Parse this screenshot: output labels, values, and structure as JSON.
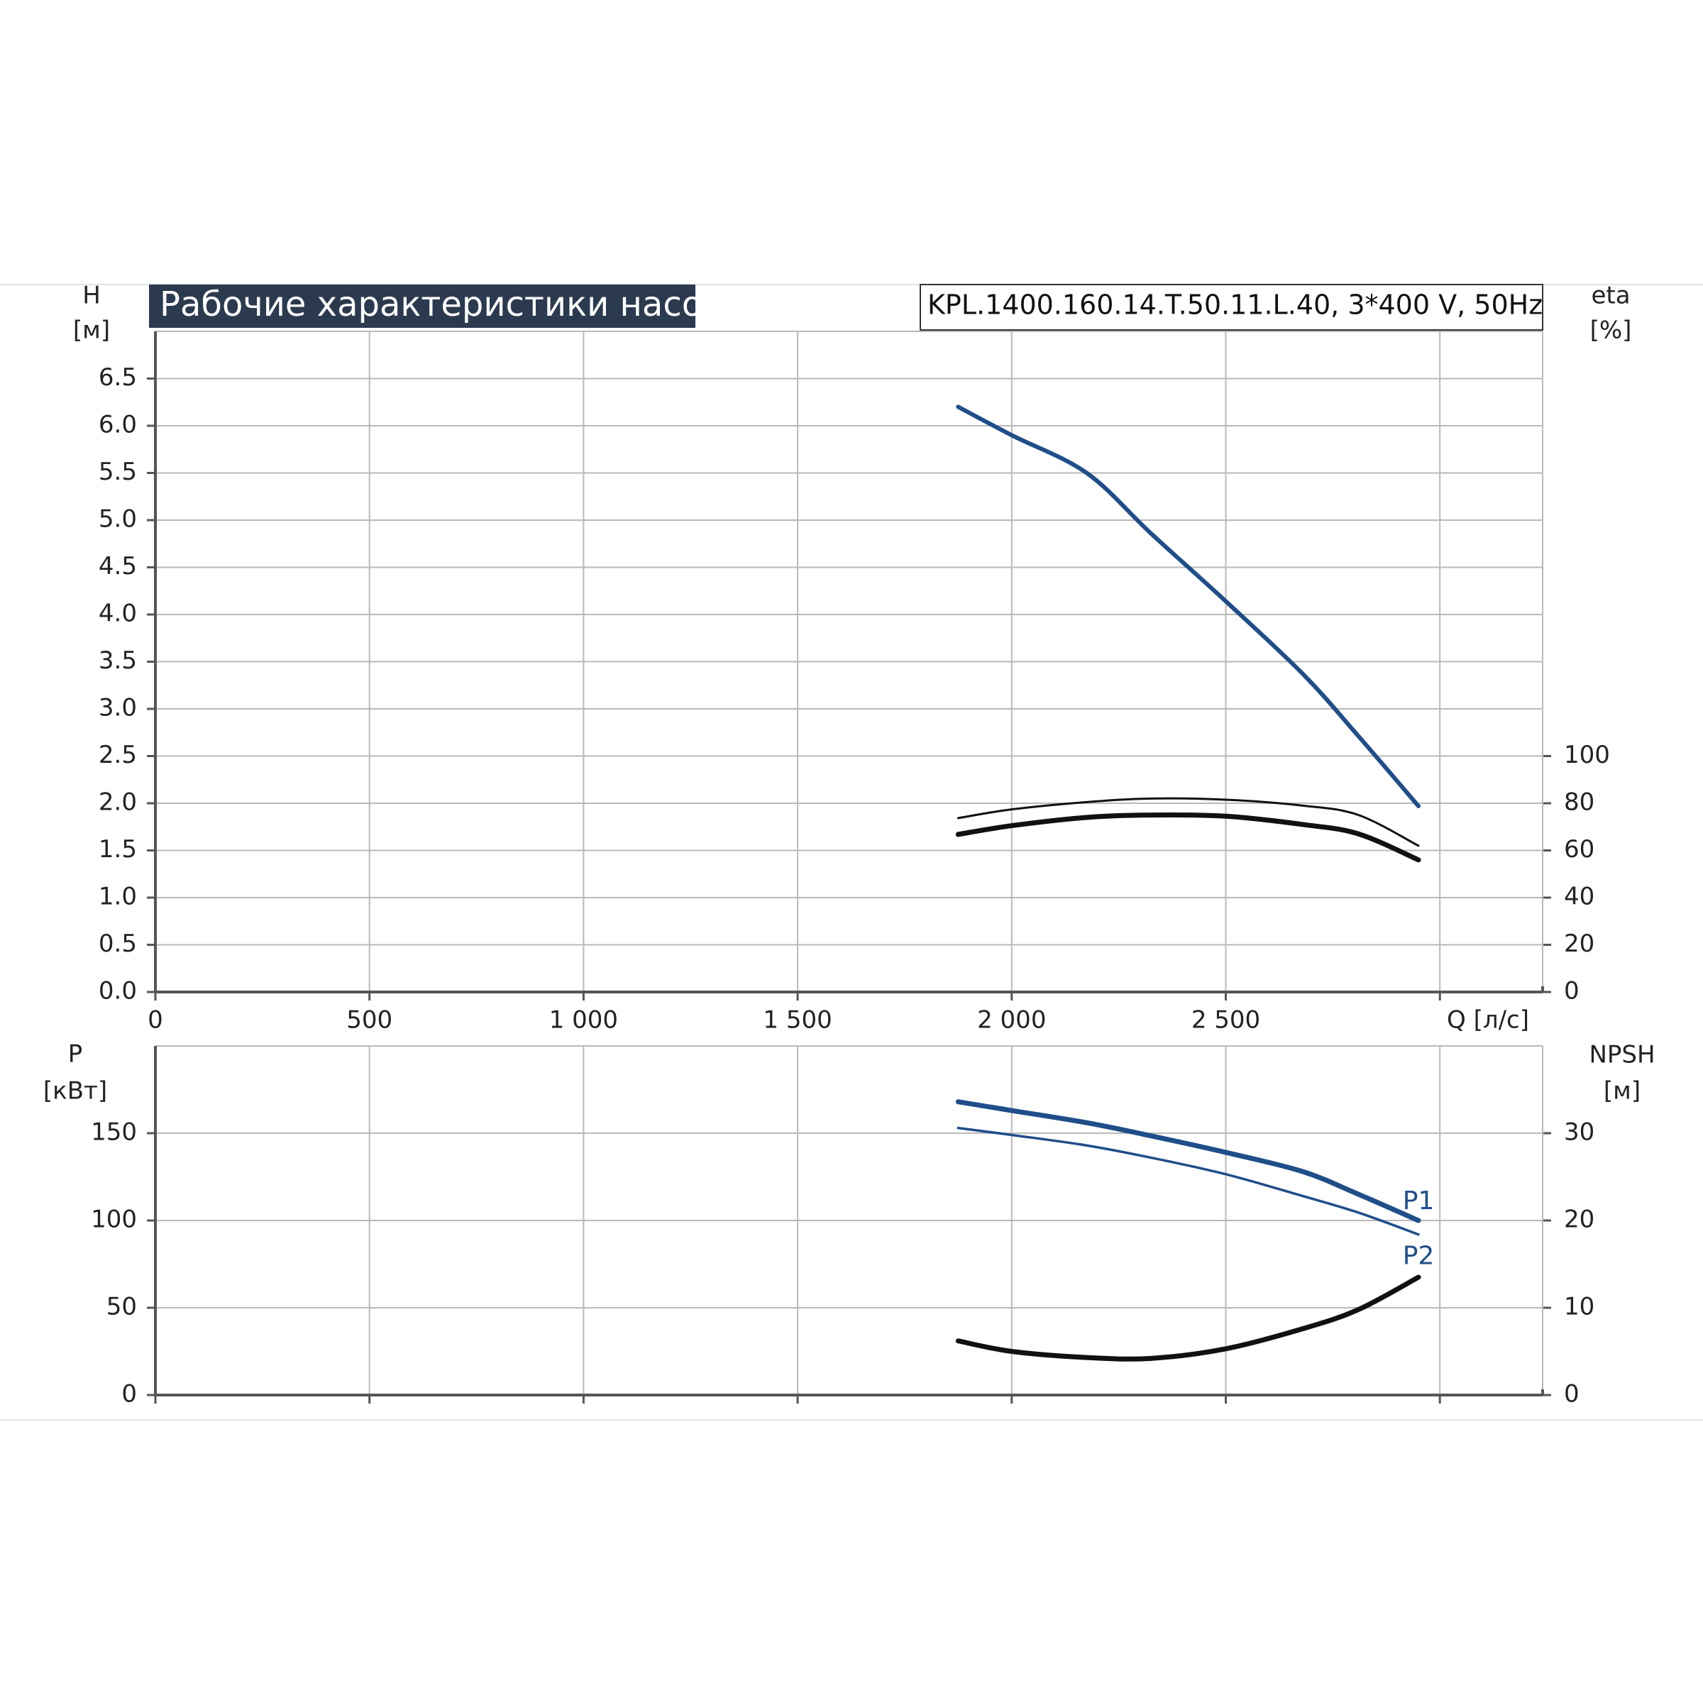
{
  "chart_data": [
    {
      "type": "line",
      "title": "Рабочие характеристики насоса",
      "subtitle": "KPL.1400.160.14.T.50.11.L.40, 3*400 V, 50Hz",
      "y_label": "H",
      "y_unit": "[м]",
      "y2_label": "eta",
      "y2_unit": "[%]",
      "x_label": "Q [л/с]",
      "x": [
        1875,
        2000,
        2175,
        2325,
        2500,
        2680,
        2810,
        2950
      ],
      "xlim": [
        0,
        3240
      ],
      "xticks": [
        0,
        500,
        {
          "value": 1000,
          "label": "1 000"
        },
        {
          "value": 1500,
          "label": "1 500"
        },
        {
          "value": 2000,
          "label": "2 000"
        },
        {
          "value": 2500,
          "label": "2 500"
        },
        {
          "value": 3000,
          "label": null
        }
      ],
      "ylim": [
        0,
        7
      ],
      "yticks": [
        {
          "value": 0,
          "label": "0.0"
        },
        0.5,
        {
          "value": 1,
          "label": "1.0"
        },
        1.5,
        {
          "value": 2,
          "label": "2.0"
        },
        2.5,
        {
          "value": 3,
          "label": "3.0"
        },
        3.5,
        {
          "value": 4,
          "label": "4.0"
        },
        4.5,
        {
          "value": 5,
          "label": "5.0"
        },
        5.5,
        {
          "value": 6,
          "label": "6.0"
        },
        6.5
      ],
      "y2lim": [
        0,
        280
      ],
      "y2ticks": [
        0,
        20,
        40,
        60,
        80,
        100
      ],
      "grid": true,
      "series": [
        {
          "color": "#1f4e89",
          "values": [
            6.2,
            5.9,
            5.5,
            4.86,
            4.14,
            3.37,
            2.71,
            1.97
          ]
        },
        {
          "color": "#111111",
          "axis": "y2",
          "values": [
            73.7,
            77.4,
            80.5,
            82,
            81.5,
            79,
            75,
            62
          ]
        },
        {
          "color": "#111111",
          "axis": "y2",
          "values": [
            66.8,
            70.5,
            74,
            75,
            74.5,
            71,
            67,
            56
          ]
        }
      ]
    },
    {
      "type": "line",
      "y_label": "P",
      "y_unit": "[кВт]",
      "y2_label": "NPSH",
      "y2_unit": "[м]",
      "x": [
        1875,
        2000,
        2175,
        2325,
        2500,
        2680,
        2810,
        2950
      ],
      "ylim": [
        0,
        200
      ],
      "yticks": [
        0,
        50,
        100,
        150
      ],
      "y2lim": [
        0,
        40
      ],
      "y2ticks": [
        0,
        10,
        20,
        30
      ],
      "grid": true,
      "series": [
        {
          "name": "P1",
          "color": "#1f4e89",
          "values": [
            168,
            163,
            156,
            148.5,
            139,
            128,
            115,
            100
          ]
        },
        {
          "name": "P2",
          "color": "#1f4e89",
          "values": [
            153,
            149,
            143,
            136,
            126.5,
            114,
            104.5,
            92
          ]
        },
        {
          "color": "#111111",
          "axis": "y2",
          "values": [
            6.2,
            5.0,
            4.3,
            4.2,
            5.3,
            7.6,
            9.8,
            13.5
          ]
        }
      ]
    }
  ]
}
